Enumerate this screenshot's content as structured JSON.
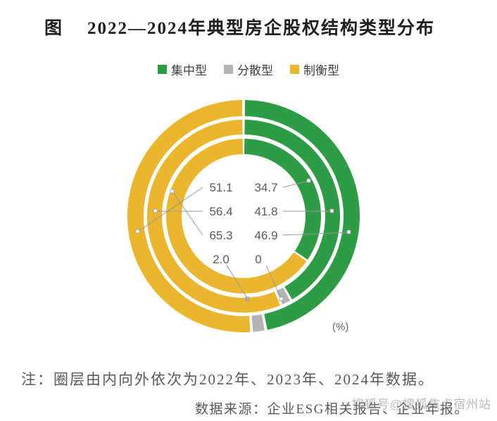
{
  "title": {
    "prefix": "图",
    "text": "2022—2024年典型房企股权结构类型分布"
  },
  "chart_data": {
    "type": "donut",
    "title": "2022—2024年典型房企股权结构类型分布",
    "unit": "(%)",
    "categories": [
      "集中型",
      "分散型",
      "制衡型"
    ],
    "colors": {
      "集中型": "#2d9c44",
      "分散型": "#b3b3b3",
      "制衡型": "#eab62e"
    },
    "legend_position": "top",
    "rings_inner_to_outer": [
      "2022",
      "2023",
      "2024"
    ],
    "rings": [
      {
        "year": "2022",
        "position": "inner",
        "values": {
          "集中型": 34.7,
          "分散型": 0,
          "制衡型": 65.3
        }
      },
      {
        "year": "2023",
        "position": "middle",
        "values": {
          "集中型": 41.8,
          "分散型": 1.8,
          "制衡型": 56.4
        }
      },
      {
        "year": "2024",
        "position": "outer",
        "values": {
          "集中型": 46.9,
          "分散型": 2.0,
          "制衡型": 51.1
        }
      }
    ],
    "value_labels": {
      "left": [
        "51.1",
        "56.4",
        "65.3",
        "2.0"
      ],
      "right": [
        "34.7",
        "41.8",
        "46.9",
        "0"
      ]
    }
  },
  "footnote": "注：圈层由内向外依次为2022年、2023年、2024年数据。",
  "source": "数据来源：企业ESG相关报告、企业年报。",
  "watermark": "搜狐号@搜狐焦点宿州站"
}
